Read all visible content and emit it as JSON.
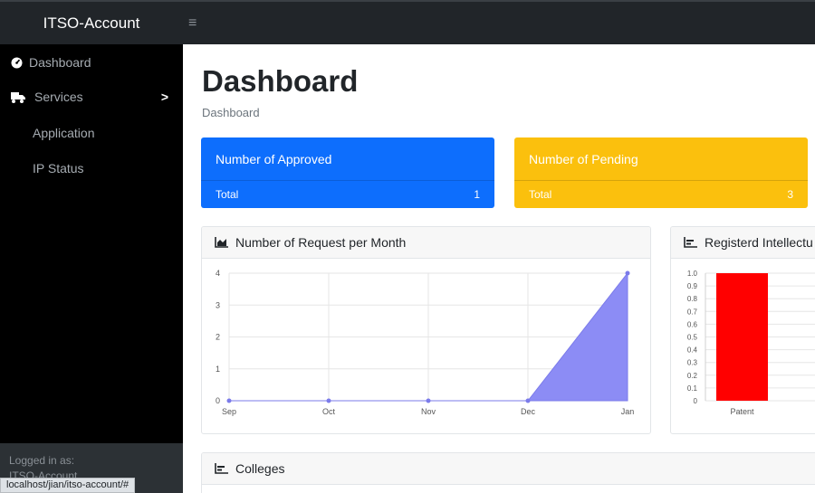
{
  "topbar": {
    "brand": "ITSO-Account",
    "toggle_glyph": "≡"
  },
  "sidebar": {
    "items": [
      {
        "label": "Dashboard",
        "icon": "dashboard-gauge-icon"
      },
      {
        "label": "Services",
        "icon": "truck-icon",
        "chevron": ">"
      }
    ],
    "sub_items": [
      {
        "label": "Application"
      },
      {
        "label": "IP Status"
      }
    ],
    "footer_label": "Logged in as:",
    "footer_user": "ITSO-Account"
  },
  "status_url": "localhost/jian/itso-account/#",
  "main": {
    "title": "Dashboard",
    "breadcrumb": "Dashboard",
    "cards": [
      {
        "title": "Number of Approved",
        "footer_label": "Total",
        "value": "1",
        "color": "#0d6efd"
      },
      {
        "title": "Number of Pending",
        "footer_label": "Total",
        "value": "3",
        "color": "#fbc00d"
      }
    ],
    "panels": {
      "requests": {
        "title": "Number of Request per Month",
        "icon": "area-chart-icon"
      },
      "registered": {
        "title": "Registerd Intellectu",
        "icon": "bar-chart-icon"
      },
      "colleges": {
        "title": "Colleges",
        "icon": "bar-chart-icon"
      }
    }
  },
  "chart_data": [
    {
      "type": "area",
      "title": "Number of Request per Month",
      "categories": [
        "Sep",
        "Oct",
        "Nov",
        "Dec",
        "Jan"
      ],
      "values": [
        0,
        0,
        0,
        0,
        4
      ],
      "ylim": [
        0,
        4
      ],
      "yticks": [
        "0",
        "1",
        "2",
        "3",
        "4"
      ],
      "grid": true,
      "fill_color": "#8c8cf5",
      "line_color": "#7b7bea"
    },
    {
      "type": "bar",
      "title": "Registerd Intellectu",
      "categories": [
        "Patent"
      ],
      "values": [
        1.0
      ],
      "ylim": [
        0,
        1.0
      ],
      "yticks": [
        "0",
        "0.1",
        "0.2",
        "0.3",
        "0.4",
        "0.5",
        "0.6",
        "0.7",
        "0.8",
        "0.9",
        "1.0"
      ],
      "grid": true,
      "bar_color": "#ff0000"
    }
  ]
}
